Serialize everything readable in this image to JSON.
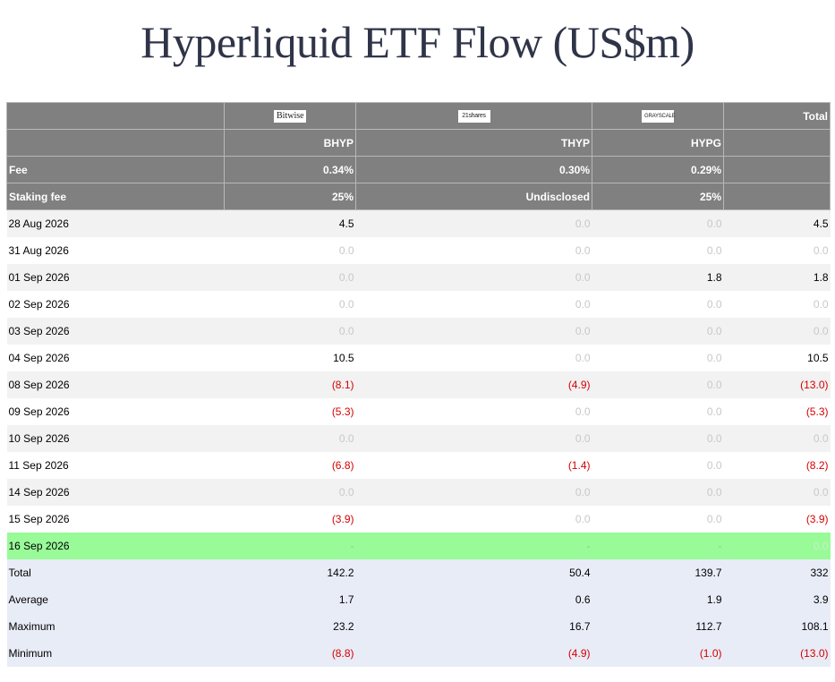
{
  "title": "Hyperliquid ETF Flow (US$m)",
  "header": {
    "issuers": [
      "Bitwise",
      "21shares",
      "GRAYSCALE"
    ],
    "total_label": "Total",
    "tickers": [
      "BHYP",
      "THYP",
      "HYPG"
    ],
    "fee_label": "Fee",
    "fees": [
      "0.34%",
      "0.30%",
      "0.29%"
    ],
    "staking_label": "Staking fee",
    "staking": [
      "25%",
      "Undisclosed",
      "25%"
    ]
  },
  "rows": [
    {
      "date": "28 Aug 2026",
      "bhyp": "4.5",
      "thyp": "0.0",
      "hypg": "0.0",
      "total": "4.5"
    },
    {
      "date": "31 Aug 2026",
      "bhyp": "0.0",
      "thyp": "0.0",
      "hypg": "0.0",
      "total": "0.0"
    },
    {
      "date": "01 Sep 2026",
      "bhyp": "0.0",
      "thyp": "0.0",
      "hypg": "1.8",
      "total": "1.8"
    },
    {
      "date": "02 Sep 2026",
      "bhyp": "0.0",
      "thyp": "0.0",
      "hypg": "0.0",
      "total": "0.0"
    },
    {
      "date": "03 Sep 2026",
      "bhyp": "0.0",
      "thyp": "0.0",
      "hypg": "0.0",
      "total": "0.0"
    },
    {
      "date": "04 Sep 2026",
      "bhyp": "10.5",
      "thyp": "0.0",
      "hypg": "0.0",
      "total": "10.5"
    },
    {
      "date": "08 Sep 2026",
      "bhyp": "(8.1)",
      "thyp": "(4.9)",
      "hypg": "0.0",
      "total": "(13.0)"
    },
    {
      "date": "09 Sep 2026",
      "bhyp": "(5.3)",
      "thyp": "0.0",
      "hypg": "0.0",
      "total": "(5.3)"
    },
    {
      "date": "10 Sep 2026",
      "bhyp": "0.0",
      "thyp": "0.0",
      "hypg": "0.0",
      "total": "0.0"
    },
    {
      "date": "11 Sep 2026",
      "bhyp": "(6.8)",
      "thyp": "(1.4)",
      "hypg": "0.0",
      "total": "(8.2)"
    },
    {
      "date": "14 Sep 2026",
      "bhyp": "0.0",
      "thyp": "0.0",
      "hypg": "0.0",
      "total": "0.0"
    },
    {
      "date": "15 Sep 2026",
      "bhyp": "(3.9)",
      "thyp": "0.0",
      "hypg": "0.0",
      "total": "(3.9)"
    },
    {
      "date": "16 Sep 2026",
      "bhyp": "-",
      "thyp": "-",
      "hypg": "-",
      "total": "0.0",
      "highlight": true
    }
  ],
  "summary": [
    {
      "label": "Total",
      "bhyp": "142.2",
      "thyp": "50.4",
      "hypg": "139.7",
      "total": "332"
    },
    {
      "label": "Average",
      "bhyp": "1.7",
      "thyp": "0.6",
      "hypg": "1.9",
      "total": "3.9"
    },
    {
      "label": "Maximum",
      "bhyp": "23.2",
      "thyp": "16.7",
      "hypg": "112.7",
      "total": "108.1"
    },
    {
      "label": "Minimum",
      "bhyp": "(8.8)",
      "thyp": "(4.9)",
      "hypg": "(1.0)",
      "total": "(13.0)"
    }
  ],
  "colors": {
    "header_bg": "#808080",
    "negative": "#d40000",
    "zero": "#c8c8c8",
    "highlight": "#98fb98",
    "summary_bg": "#e8ecf7"
  }
}
